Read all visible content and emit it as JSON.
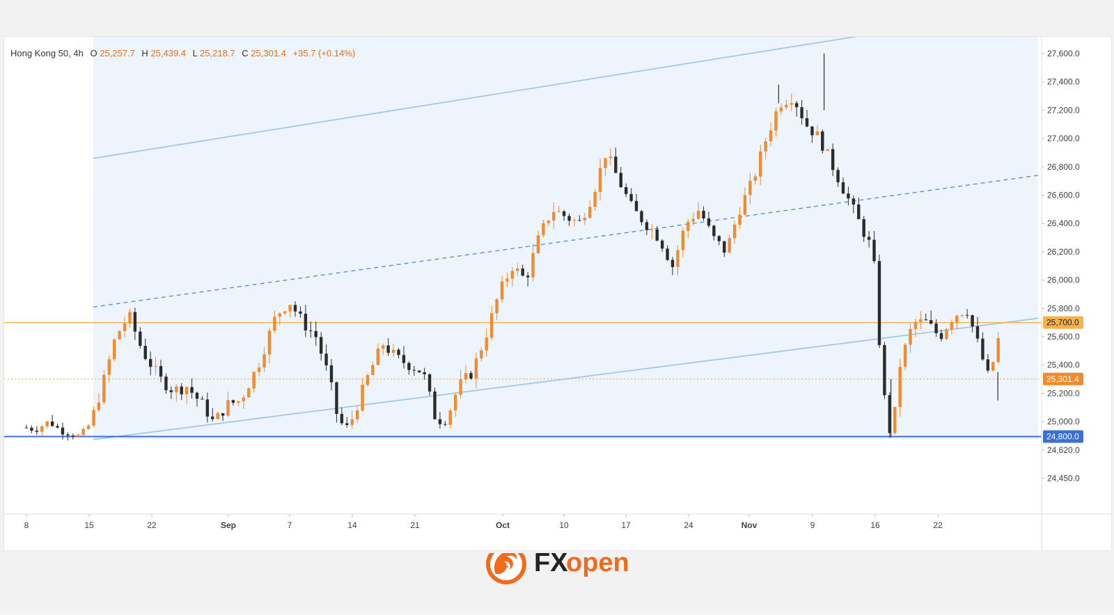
{
  "legend": {
    "symbol": "Hong Kong 50, 4h",
    "o_label": "O",
    "o_value": "25,257.7",
    "h_label": "H",
    "h_value": "25,439.4",
    "l_label": "L",
    "l_value": "25,218.7",
    "c_label": "C",
    "c_value": "25,301.4",
    "change": "+35.7 (+0.14%)"
  },
  "brand": {
    "name_fx": "FX",
    "name_open": "open",
    "accent": "#f26b1d",
    "dark": "#222222"
  },
  "colors": {
    "up": "#f28a2e",
    "down": "#2b2b2b",
    "channel": "#9cc3e6",
    "channel_fill": "#eef4fc",
    "midline": "#5b8fd6",
    "support": "#3a6fd8",
    "resistance": "#f5b14a",
    "price_line": "#f5a040"
  },
  "chart_data": {
    "type": "candlestick",
    "title": "Hong Kong 50, 4h",
    "y_ticks": [
      "27,600.0",
      "27,400.0",
      "27,200.0",
      "27,000.0",
      "26,800.0",
      "26,600.0",
      "26,400.0",
      "26,200.0",
      "26,000.0",
      "25,800.0",
      "25,600.0",
      "25,400.0",
      "25,200.0",
      "25,000.0",
      "24,620.0",
      "24,450.0"
    ],
    "y_tick_values": [
      27600,
      27400,
      27200,
      27000,
      26800,
      26600,
      26400,
      26200,
      26000,
      25800,
      25600,
      25400,
      25200,
      25000,
      24620,
      24450
    ],
    "x_ticks": [
      "8",
      "15",
      "22",
      "Sep",
      "7",
      "14",
      "21",
      "Oct",
      "10",
      "17",
      "24",
      "Nov",
      "9",
      "16",
      "22"
    ],
    "price_labels": [
      {
        "text": "25,700.0",
        "value": 25700,
        "kind": "resistance"
      },
      {
        "text": "25,301.4",
        "value": 25301.4,
        "kind": "last"
      },
      {
        "text": "24,800.0",
        "value": 24800,
        "kind": "support"
      }
    ],
    "horizontal_levels": [
      {
        "value": 25700,
        "style": "solid",
        "color": "#f5b14a"
      },
      {
        "value": 24800,
        "style": "solid",
        "color": "#3a6fd8"
      },
      {
        "value": 25301.4,
        "style": "dotted",
        "color": "#f5a040"
      }
    ],
    "channel": {
      "upper": [
        {
          "day": 7.5,
          "value": 26860
        },
        {
          "day": 111,
          "value": 27900
        }
      ],
      "lower": [
        {
          "day": 7.5,
          "value": 24760
        },
        {
          "day": 113.5,
          "value": 25730
        }
      ],
      "mid": [
        {
          "day": 7.5,
          "value": 25810
        },
        {
          "day": 113.5,
          "value": 26740
        }
      ]
    },
    "candles_path": [
      [
        0,
        24920
      ],
      [
        1,
        24890
      ],
      [
        2.5,
        25000
      ],
      [
        4,
        24870
      ],
      [
        6,
        24800
      ],
      [
        7,
        24950
      ],
      [
        8.5,
        25250
      ],
      [
        10,
        25600
      ],
      [
        11.5,
        25750
      ],
      [
        13,
        25500
      ],
      [
        15,
        25300
      ],
      [
        16.5,
        25220
      ],
      [
        18,
        25250
      ],
      [
        20,
        25100
      ],
      [
        21,
        24990
      ],
      [
        22.5,
        25120
      ],
      [
        24,
        25150
      ],
      [
        26,
        25400
      ],
      [
        28,
        25750
      ],
      [
        29.5,
        25850
      ],
      [
        31,
        25700
      ],
      [
        32.5,
        25600
      ],
      [
        34,
        25300
      ],
      [
        35,
        25000
      ],
      [
        36,
        24930
      ],
      [
        37,
        25100
      ],
      [
        38.5,
        25350
      ],
      [
        40,
        25550
      ],
      [
        41.5,
        25450
      ],
      [
        43,
        25400
      ],
      [
        44.5,
        25350
      ],
      [
        46,
        25000
      ],
      [
        47,
        25000
      ],
      [
        48.5,
        25250
      ],
      [
        50,
        25350
      ],
      [
        51.5,
        25600
      ],
      [
        53,
        25900
      ],
      [
        54.5,
        26100
      ],
      [
        56,
        26000
      ],
      [
        57.5,
        26300
      ],
      [
        59,
        26500
      ],
      [
        60.5,
        26450
      ],
      [
        62,
        26400
      ],
      [
        63.5,
        26600
      ],
      [
        65,
        26900
      ],
      [
        66.5,
        26700
      ],
      [
        68,
        26500
      ],
      [
        69.5,
        26400
      ],
      [
        71,
        26300
      ],
      [
        72.5,
        26100
      ],
      [
        74,
        26400
      ],
      [
        75.5,
        26500
      ],
      [
        77,
        26300
      ],
      [
        78.5,
        26200
      ],
      [
        80,
        26500
      ],
      [
        81.5,
        26700
      ],
      [
        83,
        27000
      ],
      [
        84.5,
        27250
      ],
      [
        86,
        27300
      ],
      [
        87.5,
        27100
      ],
      [
        89,
        27000
      ],
      [
        90.5,
        26800
      ],
      [
        92,
        26600
      ],
      [
        93.5,
        26400
      ],
      [
        95,
        26200
      ],
      [
        96,
        25300
      ],
      [
        97,
        24800
      ],
      [
        98,
        25400
      ],
      [
        99.5,
        25700
      ],
      [
        101,
        25700
      ],
      [
        102.5,
        25600
      ],
      [
        104,
        25750
      ],
      [
        105.5,
        25800
      ],
      [
        107,
        25500
      ],
      [
        108,
        25300
      ],
      [
        109.5,
        25700
      ]
    ]
  }
}
